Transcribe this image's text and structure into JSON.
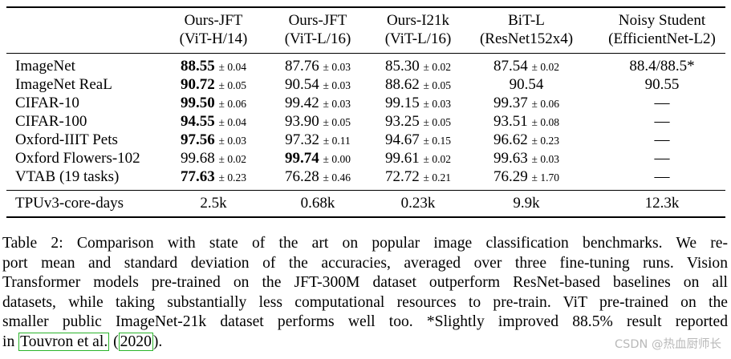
{
  "table": {
    "columns": [
      {
        "line1": "Ours-JFT",
        "line2": "(ViT-H/14)"
      },
      {
        "line1": "Ours-JFT",
        "line2": "(ViT-L/16)"
      },
      {
        "line1": "Ours-I21k",
        "line2": "(ViT-L/16)"
      },
      {
        "line1": "BiT-L",
        "line2": "(ResNet152x4)"
      },
      {
        "line1": "Noisy Student",
        "line2": "(EfficientNet-L2)"
      }
    ],
    "rows": [
      {
        "label": "ImageNet",
        "cells": [
          {
            "v": "88.55",
            "sd": "± 0.04",
            "bold": true
          },
          {
            "v": "87.76",
            "sd": "± 0.03",
            "bold": false
          },
          {
            "v": "85.30",
            "sd": "± 0.02",
            "bold": false
          },
          {
            "v": "87.54",
            "sd": "± 0.02",
            "bold": false
          },
          {
            "v": "88.4/88.5*",
            "sd": "",
            "bold": false
          }
        ]
      },
      {
        "label": "ImageNet ReaL",
        "cells": [
          {
            "v": "90.72",
            "sd": "± 0.05",
            "bold": true
          },
          {
            "v": "90.54",
            "sd": "± 0.03",
            "bold": false
          },
          {
            "v": "88.62",
            "sd": "± 0.05",
            "bold": false
          },
          {
            "v": "90.54",
            "sd": "",
            "bold": false
          },
          {
            "v": "90.55",
            "sd": "",
            "bold": false
          }
        ]
      },
      {
        "label": "CIFAR-10",
        "cells": [
          {
            "v": "99.50",
            "sd": "± 0.06",
            "bold": true
          },
          {
            "v": "99.42",
            "sd": "± 0.03",
            "bold": false
          },
          {
            "v": "99.15",
            "sd": "± 0.03",
            "bold": false
          },
          {
            "v": "99.37",
            "sd": "± 0.06",
            "bold": false
          },
          {
            "v": "—",
            "sd": "",
            "bold": false
          }
        ]
      },
      {
        "label": "CIFAR-100",
        "cells": [
          {
            "v": "94.55",
            "sd": "± 0.04",
            "bold": true
          },
          {
            "v": "93.90",
            "sd": "± 0.05",
            "bold": false
          },
          {
            "v": "93.25",
            "sd": "± 0.05",
            "bold": false
          },
          {
            "v": "93.51",
            "sd": "± 0.08",
            "bold": false
          },
          {
            "v": "—",
            "sd": "",
            "bold": false
          }
        ]
      },
      {
        "label": "Oxford-IIIT Pets",
        "cells": [
          {
            "v": "97.56",
            "sd": "± 0.03",
            "bold": true
          },
          {
            "v": "97.32",
            "sd": "± 0.11",
            "bold": false
          },
          {
            "v": "94.67",
            "sd": "± 0.15",
            "bold": false
          },
          {
            "v": "96.62",
            "sd": "± 0.23",
            "bold": false
          },
          {
            "v": "—",
            "sd": "",
            "bold": false
          }
        ]
      },
      {
        "label": "Oxford Flowers-102",
        "cells": [
          {
            "v": "99.68",
            "sd": "± 0.02",
            "bold": false
          },
          {
            "v": "99.74",
            "sd": "± 0.00",
            "bold": true
          },
          {
            "v": "99.61",
            "sd": "± 0.02",
            "bold": false
          },
          {
            "v": "99.63",
            "sd": "± 0.03",
            "bold": false
          },
          {
            "v": "—",
            "sd": "",
            "bold": false
          }
        ]
      },
      {
        "label": "VTAB (19 tasks)",
        "cells": [
          {
            "v": "77.63",
            "sd": "± 0.23",
            "bold": true
          },
          {
            "v": "76.28",
            "sd": "± 0.46",
            "bold": false
          },
          {
            "v": "72.72",
            "sd": "± 0.21",
            "bold": false
          },
          {
            "v": "76.29",
            "sd": "± 1.70",
            "bold": false
          },
          {
            "v": "—",
            "sd": "",
            "bold": false
          }
        ]
      }
    ],
    "footer_row": {
      "label": "TPUv3-core-days",
      "cells": [
        "2.5k",
        "0.68k",
        "0.23k",
        "9.9k",
        "12.3k"
      ]
    }
  },
  "caption": {
    "lines": [
      "Table 2:   Comparison with state of the art on popular image classification benchmarks.  We re-",
      "port mean and standard deviation of the accuracies, averaged over three fine-tuning runs.  Vision",
      "Transformer models pre-trained on the JFT-300M dataset outperform ResNet-based baselines on all",
      "datasets, while taking substantially less computational resources to pre-train. ViT pre-trained on the",
      "smaller public ImageNet-21k dataset performs well too.  *Slightly improved 88.5% result reported"
    ],
    "last_line_prefix": "in ",
    "citation_author": "Touvron et al.",
    "citation_open": " (",
    "citation_year": "2020",
    "citation_close": ")."
  },
  "watermark": "CSDN @热血厨师长"
}
